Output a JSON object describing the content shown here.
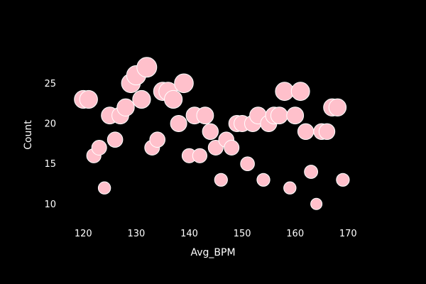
{
  "chart_data": {
    "type": "scatter",
    "title": "",
    "xlabel": "Avg_BPM",
    "ylabel": "Count",
    "xlim": [
      115,
      178
    ],
    "ylim": [
      8,
      29
    ],
    "x_ticks": [
      120,
      130,
      140,
      150,
      160,
      170
    ],
    "y_ticks": [
      10,
      15,
      20,
      25
    ],
    "grid": false,
    "legend": "none",
    "marker_color": "#ffc0cb",
    "marker_edge_color": "#ffffff",
    "background_color": "#000000",
    "size_encodes": "Count",
    "points": [
      {
        "x": 120,
        "y": 23
      },
      {
        "x": 121,
        "y": 23
      },
      {
        "x": 122,
        "y": 16
      },
      {
        "x": 123,
        "y": 17
      },
      {
        "x": 124,
        "y": 12
      },
      {
        "x": 125,
        "y": 21
      },
      {
        "x": 126,
        "y": 18
      },
      {
        "x": 127,
        "y": 21
      },
      {
        "x": 128,
        "y": 22
      },
      {
        "x": 129,
        "y": 25
      },
      {
        "x": 130,
        "y": 26
      },
      {
        "x": 131,
        "y": 23
      },
      {
        "x": 132,
        "y": 27
      },
      {
        "x": 133,
        "y": 17
      },
      {
        "x": 134,
        "y": 18
      },
      {
        "x": 135,
        "y": 24
      },
      {
        "x": 136,
        "y": 24
      },
      {
        "x": 137,
        "y": 23
      },
      {
        "x": 138,
        "y": 20
      },
      {
        "x": 139,
        "y": 25
      },
      {
        "x": 140,
        "y": 16
      },
      {
        "x": 141,
        "y": 21
      },
      {
        "x": 142,
        "y": 16
      },
      {
        "x": 143,
        "y": 21
      },
      {
        "x": 144,
        "y": 19
      },
      {
        "x": 145,
        "y": 17
      },
      {
        "x": 146,
        "y": 13
      },
      {
        "x": 147,
        "y": 18
      },
      {
        "x": 148,
        "y": 17
      },
      {
        "x": 149,
        "y": 20
      },
      {
        "x": 150,
        "y": 20
      },
      {
        "x": 151,
        "y": 15
      },
      {
        "x": 152,
        "y": 20
      },
      {
        "x": 153,
        "y": 21
      },
      {
        "x": 154,
        "y": 13
      },
      {
        "x": 155,
        "y": 20
      },
      {
        "x": 156,
        "y": 21
      },
      {
        "x": 157,
        "y": 21
      },
      {
        "x": 158,
        "y": 24
      },
      {
        "x": 159,
        "y": 12
      },
      {
        "x": 160,
        "y": 21
      },
      {
        "x": 161,
        "y": 24
      },
      {
        "x": 162,
        "y": 19
      },
      {
        "x": 163,
        "y": 14
      },
      {
        "x": 164,
        "y": 10
      },
      {
        "x": 165,
        "y": 19
      },
      {
        "x": 166,
        "y": 19
      },
      {
        "x": 167,
        "y": 22
      },
      {
        "x": 168,
        "y": 22
      },
      {
        "x": 169,
        "y": 13
      }
    ]
  }
}
